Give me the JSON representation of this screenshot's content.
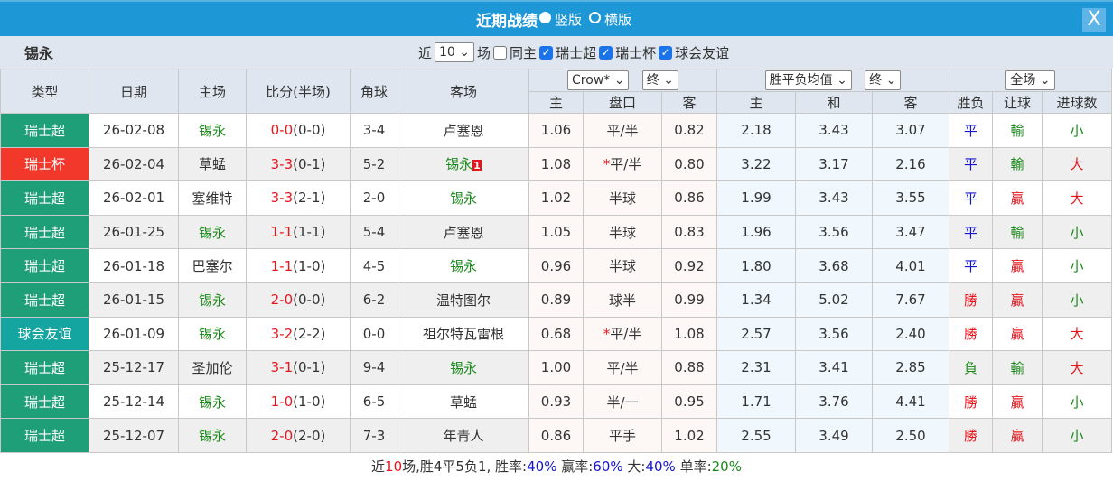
{
  "title": "近期战绩",
  "view_options": [
    {
      "label": "竖版",
      "selected": true
    },
    {
      "label": "横版",
      "selected": false
    }
  ],
  "close_label": "X",
  "team": "锡永",
  "filter": {
    "prefix": "近",
    "count": "10",
    "suffix": "场",
    "same_home": {
      "label": "同主",
      "checked": false
    },
    "leagues": [
      {
        "label": "瑞士超",
        "checked": true
      },
      {
        "label": "瑞士杯",
        "checked": true
      },
      {
        "label": "球会友谊",
        "checked": true
      }
    ]
  },
  "headers": {
    "type": "类型",
    "date": "日期",
    "home": "主场",
    "score": "比分(半场)",
    "corner": "角球",
    "away": "客场",
    "company": "Crow*",
    "odds_time": "终",
    "euro_type": "胜平负均值",
    "euro_time": "终",
    "period": "全场",
    "sub": [
      "主",
      "盘口",
      "客",
      "主",
      "和",
      "客",
      "胜负",
      "让球",
      "进球数"
    ]
  },
  "colors": {
    "瑞士超": "#1f9f77",
    "瑞士杯": "#f2382a",
    "球会友谊": "#15a5a0"
  },
  "rows": [
    {
      "league": "瑞士超",
      "date": "26-02-08",
      "home": "锡永",
      "ft": "0-0",
      "ht": "(0-0)",
      "corner": "3-4",
      "away": "卢塞恩",
      "badge": "",
      "h": "1.06",
      "line": "平/半",
      "star": false,
      "a": "0.82",
      "eh": "2.18",
      "ed": "3.43",
      "ea": "3.07",
      "res": "平",
      "ah": "輸",
      "ou": "小"
    },
    {
      "league": "瑞士杯",
      "date": "26-02-04",
      "home": "草蜢",
      "ft": "3-3",
      "ht": "(0-1)",
      "corner": "5-2",
      "away": "锡永",
      "badge": "1",
      "h": "1.08",
      "line": "平/半",
      "star": true,
      "a": "0.80",
      "eh": "3.22",
      "ed": "3.17",
      "ea": "2.16",
      "res": "平",
      "ah": "輸",
      "ou": "大"
    },
    {
      "league": "瑞士超",
      "date": "26-02-01",
      "home": "塞维特",
      "ft": "3-3",
      "ht": "(2-1)",
      "corner": "2-0",
      "away": "锡永",
      "badge": "",
      "h": "1.02",
      "line": "半球",
      "star": false,
      "a": "0.86",
      "eh": "1.99",
      "ed": "3.43",
      "ea": "3.55",
      "res": "平",
      "ah": "贏",
      "ou": "大"
    },
    {
      "league": "瑞士超",
      "date": "26-01-25",
      "home": "锡永",
      "ft": "1-1",
      "ht": "(1-1)",
      "corner": "5-4",
      "away": "卢塞恩",
      "badge": "",
      "h": "1.05",
      "line": "半球",
      "star": false,
      "a": "0.83",
      "eh": "1.96",
      "ed": "3.56",
      "ea": "3.47",
      "res": "平",
      "ah": "輸",
      "ou": "小"
    },
    {
      "league": "瑞士超",
      "date": "26-01-18",
      "home": "巴塞尔",
      "ft": "1-1",
      "ht": "(1-0)",
      "corner": "4-5",
      "away": "锡永",
      "badge": "",
      "h": "0.96",
      "line": "半球",
      "star": false,
      "a": "0.92",
      "eh": "1.80",
      "ed": "3.68",
      "ea": "4.01",
      "res": "平",
      "ah": "贏",
      "ou": "小"
    },
    {
      "league": "瑞士超",
      "date": "26-01-15",
      "home": "锡永",
      "ft": "2-0",
      "ht": "(0-0)",
      "corner": "6-2",
      "away": "温特图尔",
      "badge": "",
      "h": "0.89",
      "line": "球半",
      "star": false,
      "a": "0.99",
      "eh": "1.34",
      "ed": "5.02",
      "ea": "7.67",
      "res": "勝",
      "ah": "贏",
      "ou": "小"
    },
    {
      "league": "球会友谊",
      "date": "26-01-09",
      "home": "锡永",
      "ft": "3-2",
      "ht": "(2-2)",
      "corner": "0-0",
      "away": "祖尔特瓦雷根",
      "badge": "",
      "h": "0.68",
      "line": "平/半",
      "star": true,
      "a": "1.08",
      "eh": "2.57",
      "ed": "3.56",
      "ea": "2.40",
      "res": "勝",
      "ah": "贏",
      "ou": "大"
    },
    {
      "league": "瑞士超",
      "date": "25-12-17",
      "home": "圣加伦",
      "ft": "3-1",
      "ht": "(0-1)",
      "corner": "9-4",
      "away": "锡永",
      "badge": "",
      "h": "1.00",
      "line": "平/半",
      "star": false,
      "a": "0.88",
      "eh": "2.31",
      "ed": "3.41",
      "ea": "2.85",
      "res": "負",
      "ah": "輸",
      "ou": "大"
    },
    {
      "league": "瑞士超",
      "date": "25-12-14",
      "home": "锡永",
      "ft": "1-0",
      "ht": "(1-0)",
      "corner": "6-5",
      "away": "草蜢",
      "badge": "",
      "h": "0.93",
      "line": "半/一",
      "star": false,
      "a": "0.95",
      "eh": "1.71",
      "ed": "3.76",
      "ea": "4.41",
      "res": "勝",
      "ah": "贏",
      "ou": "小"
    },
    {
      "league": "瑞士超",
      "date": "25-12-07",
      "home": "锡永",
      "ft": "2-0",
      "ht": "(2-0)",
      "corner": "7-3",
      "away": "年青人",
      "badge": "",
      "h": "0.86",
      "line": "平手",
      "star": false,
      "a": "1.02",
      "eh": "2.55",
      "ed": "3.49",
      "ea": "2.50",
      "res": "勝",
      "ah": "贏",
      "ou": "小"
    }
  ],
  "summary": {
    "p1": "近",
    "n": "10",
    "p2": "场,胜4平5负1, 胜率:",
    "win": "40%",
    "p3": " 赢率:",
    "ahwin": "60%",
    "p4": " 大:",
    "big": "40%",
    "p5": " 单率:",
    "odd": "20%"
  }
}
